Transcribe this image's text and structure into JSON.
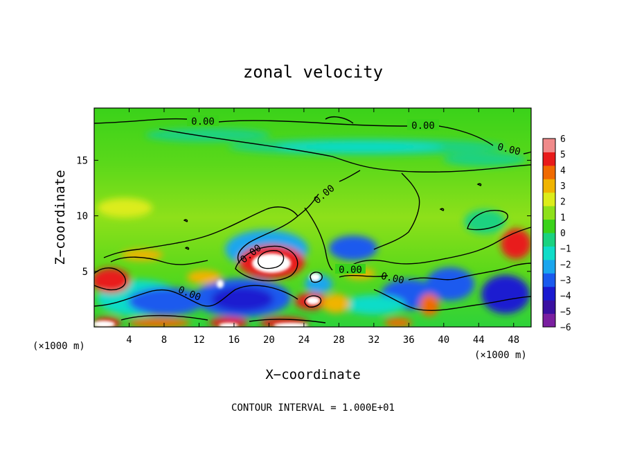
{
  "chart_data": {
    "type": "heatmap",
    "title": "zonal velocity",
    "xlabel": "X−coordinate",
    "ylabel": "Z−coordinate",
    "x_unit_left": "(×1000 m)",
    "x_unit_right": "(×1000 m)",
    "footer": "CONTOUR INTERVAL = 1.000E+01",
    "xlim": [
      0,
      50
    ],
    "ylim": [
      0,
      19.7
    ],
    "x_ticks": [
      4,
      8,
      12,
      16,
      20,
      24,
      28,
      32,
      36,
      40,
      44,
      48
    ],
    "x_tick_labels": [
      "4",
      "8",
      "12",
      "16",
      "20",
      "24",
      "28",
      "32",
      "36",
      "40",
      "44",
      "48"
    ],
    "y_ticks": [
      5,
      10,
      15
    ],
    "y_tick_labels": [
      "5",
      "10",
      "15"
    ],
    "colorbar": {
      "min": -6,
      "max": 6,
      "tick_values": [
        6,
        5,
        4,
        3,
        2,
        1,
        0,
        -1,
        -2,
        -3,
        -4,
        -5,
        -6
      ],
      "tick_labels": [
        "6",
        "5",
        "4",
        "3",
        "2",
        "1",
        "0",
        "−1",
        "−2",
        "−3",
        "−4",
        "−5",
        "−6"
      ],
      "colors": [
        "#7a1fa0",
        "#3a10a0",
        "#1a1ad0",
        "#1a5aee",
        "#1aa6ee",
        "#10dcc8",
        "#1ad280",
        "#3ad21a",
        "#8ee01a",
        "#dcec1a",
        "#f0b400",
        "#f06a00",
        "#e81a1a",
        "#f08a8a"
      ]
    },
    "contour_labels": [
      "0.00",
      "0.00",
      "0.00",
      "0.00",
      "0.00",
      "0.00",
      "0.00",
      "0.00"
    ],
    "features": [
      {
        "x": 2.0,
        "z": 4.2,
        "value": 4.5
      },
      {
        "x": 10.0,
        "z": 2.5,
        "value": -4.5
      },
      {
        "x": 14.8,
        "z": 3.8,
        "value": -5.0
      },
      {
        "x": 16.0,
        "z": 0.5,
        "value": 5.5
      },
      {
        "x": 18.5,
        "z": 1.8,
        "value": -5.0
      },
      {
        "x": 20.0,
        "z": 5.8,
        "value": 6.0
      },
      {
        "x": 24.8,
        "z": 2.4,
        "value": 5.0
      },
      {
        "x": 25.2,
        "z": 4.5,
        "value": -6.0
      },
      {
        "x": 29.5,
        "z": 6.8,
        "value": -3.0
      },
      {
        "x": 35.0,
        "z": 2.5,
        "value": -4.5
      },
      {
        "x": 40.0,
        "z": 3.5,
        "value": -4.0
      },
      {
        "x": 45.0,
        "z": 3.0,
        "value": -4.5
      },
      {
        "x": 47.5,
        "z": 7.0,
        "value": 4.5
      },
      {
        "x": 1.0,
        "z": 0.3,
        "value": 6.0
      },
      {
        "x": 30.0,
        "z": 16.5,
        "value": -1.5
      },
      {
        "x": 44.0,
        "z": 9.5,
        "value": -1.0
      }
    ]
  }
}
